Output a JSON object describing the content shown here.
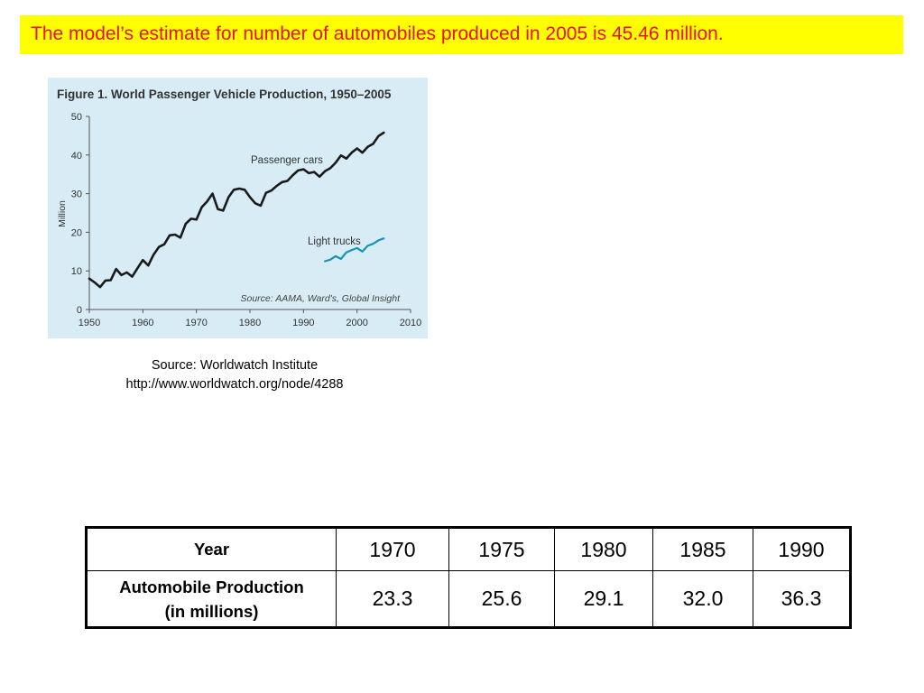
{
  "banner": {
    "text": "The model’s estimate for number of automobiles produced in 2005 is 45.46 million."
  },
  "colors": {
    "banner_bg": "#ffff00",
    "banner_text": "#e8102a",
    "panel_bg": "#d7ecf5",
    "cars_line": "#1a1a1a",
    "trucks_line": "#1a93b0"
  },
  "chart_data": {
    "type": "line",
    "title": "Figure 1. World Passenger Vehicle Production, 1950–2005",
    "ylabel": "Million",
    "xlabel": "",
    "xlim": [
      1950,
      2010
    ],
    "ylim": [
      0,
      50
    ],
    "x_ticks": [
      1950,
      1960,
      1970,
      1980,
      1990,
      2000,
      2010
    ],
    "y_ticks": [
      0,
      10,
      20,
      30,
      40,
      50
    ],
    "grid": false,
    "source_note": "Source: AAMA, Ward's, Global Insight",
    "series": [
      {
        "name": "Passenger cars",
        "x": [
          1950,
          1951,
          1952,
          1953,
          1954,
          1955,
          1956,
          1957,
          1958,
          1959,
          1960,
          1961,
          1962,
          1963,
          1964,
          1965,
          1966,
          1967,
          1968,
          1969,
          1970,
          1971,
          1972,
          1973,
          1974,
          1975,
          1976,
          1977,
          1978,
          1979,
          1980,
          1981,
          1982,
          1983,
          1984,
          1985,
          1986,
          1987,
          1988,
          1989,
          1990,
          1991,
          1992,
          1993,
          1994,
          1995,
          1996,
          1997,
          1998,
          1999,
          2000,
          2001,
          2002,
          2003,
          2004,
          2005
        ],
        "values": [
          8,
          7,
          5.8,
          7.5,
          7.6,
          10.5,
          8.9,
          9.6,
          8.5,
          10.7,
          12.8,
          11.4,
          14.2,
          16.2,
          16.9,
          19.2,
          19.4,
          18.6,
          22.2,
          23.5,
          23.3,
          26.5,
          28,
          30,
          26,
          25.6,
          29.1,
          31,
          31.3,
          31,
          29.1,
          27.5,
          26.9,
          30.2,
          30.8,
          32,
          33,
          33.3,
          34.8,
          36,
          36.3,
          35.3,
          35.6,
          34.4,
          35.8,
          36.6,
          38,
          39.9,
          39.1,
          40.6,
          41.7,
          40.6,
          42.1,
          42.9,
          44.9,
          45.8
        ],
        "color": "#1a1a1a"
      },
      {
        "name": "Light trucks",
        "x": [
          1994,
          1995,
          1996,
          1997,
          1998,
          1999,
          2000,
          2001,
          2002,
          2003,
          2004,
          2005
        ],
        "values": [
          12.5,
          12.9,
          13.8,
          13.1,
          14.8,
          15.4,
          15.9,
          15,
          16.5,
          17,
          17.9,
          18.4
        ],
        "color": "#1a93b0"
      }
    ]
  },
  "source": {
    "line1": "Source:  Worldwatch Institute",
    "line2": "http://www.worldwatch.org/node/4288"
  },
  "table": {
    "header_label": "Year",
    "years": [
      "1970",
      "1975",
      "1980",
      "1985",
      "1990"
    ],
    "row_label_line1": "Automobile Production",
    "row_label_line2": "(in millions)",
    "values": [
      "23.3",
      "25.6",
      "29.1",
      "32.0",
      "36.3"
    ]
  }
}
